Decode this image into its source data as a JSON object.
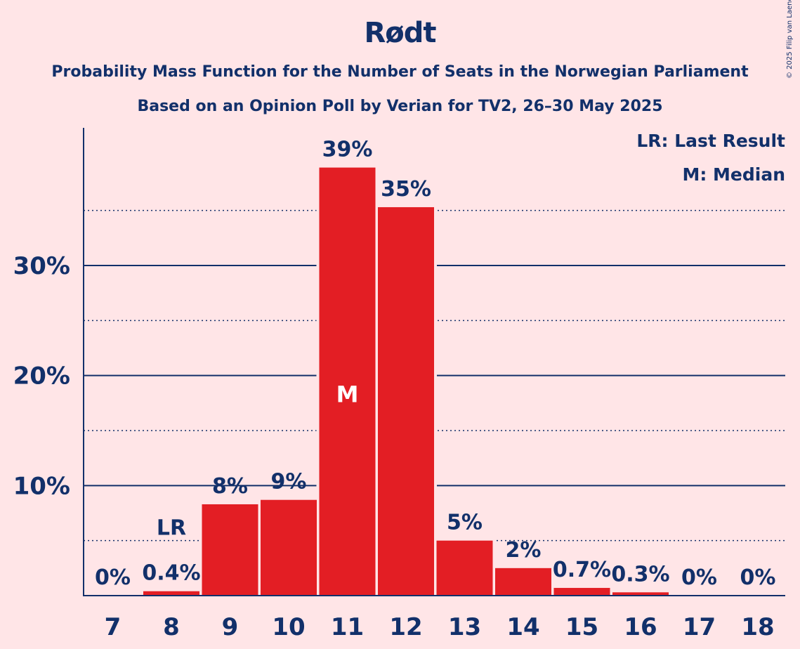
{
  "title": "Rødt",
  "subtitle": "Probability Mass Function for the Number of Seats in the Norwegian Parliament",
  "subtitle2": "Based on an Opinion Poll by Verian for TV2, 26–30 May 2025",
  "credit": "© 2025 Filip van Laenen",
  "legend": {
    "last_result": "LR: Last Result",
    "median": "M: Median"
  },
  "colors": {
    "background": "#FFE5E7",
    "bar": "#E31E24",
    "text": "#12306A"
  },
  "chart_data": {
    "type": "bar",
    "categories": [
      "7",
      "8",
      "9",
      "10",
      "11",
      "12",
      "13",
      "14",
      "15",
      "16",
      "17",
      "18"
    ],
    "values": [
      0,
      0.4,
      8.3,
      8.7,
      38.9,
      35.3,
      5.0,
      2.5,
      0.7,
      0.3,
      0,
      0
    ],
    "labels": [
      "0%",
      "0.4%",
      "8%",
      "9%",
      "39%",
      "35%",
      "5%",
      "2%",
      "0.7%",
      "0.3%",
      "0%",
      "0%"
    ],
    "ylim": [
      0,
      42.5
    ],
    "yticks": [
      10,
      20,
      30
    ],
    "ytick_labels": [
      "10%",
      "20%",
      "30%"
    ],
    "minor_gridlines": [
      5,
      15,
      25,
      35
    ],
    "markers": [
      {
        "category": "8",
        "text": "LR"
      },
      {
        "category": "11",
        "text": "M"
      }
    ],
    "xlabel": "",
    "ylabel": "",
    "legend_position": "top-right"
  }
}
